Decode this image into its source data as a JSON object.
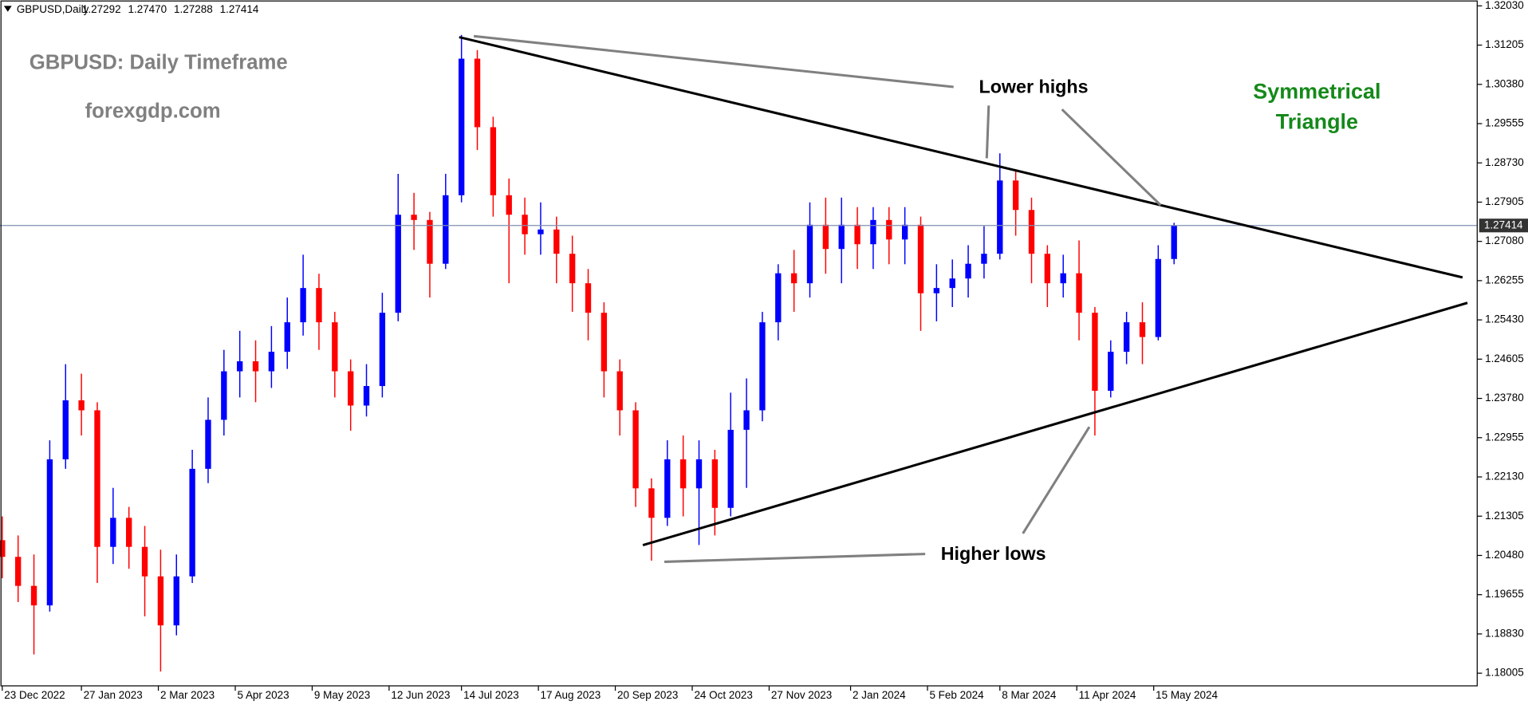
{
  "chart_data": {
    "type": "candlestick",
    "symbol_header": "GBPUSD,Daily",
    "ohlc_header": [
      "1.27292",
      "1.27470",
      "1.27288",
      "1.27414"
    ],
    "annotations": {
      "title": "GBPUSD: Daily Timeframe",
      "source": "forexgdp.com",
      "upper_note": "Lower highs",
      "lower_note": "Higher lows",
      "pattern": [
        "Symmetrical",
        "Triangle"
      ]
    },
    "up_color": "#0000ff",
    "down_color": "#ff0000",
    "current_price": {
      "value": 1.27414,
      "label": "1.27414"
    },
    "xlim": [
      "2022-12-22",
      "2024-10-05"
    ],
    "xticks": [
      {
        "value": "2022-12-23",
        "label": "23 Dec 2022"
      },
      {
        "value": "2023-01-27",
        "label": "27 Jan 2023"
      },
      {
        "value": "2023-03-02",
        "label": "2 Mar 2023"
      },
      {
        "value": "2023-04-05",
        "label": "5 Apr 2023"
      },
      {
        "value": "2023-05-09",
        "label": "9 May 2023"
      },
      {
        "value": "2023-06-12",
        "label": "12 Jun 2023"
      },
      {
        "value": "2023-07-14",
        "label": "14 Jul 2023"
      },
      {
        "value": "2023-08-17",
        "label": "17 Aug 2023"
      },
      {
        "value": "2023-09-20",
        "label": "20 Sep 2023"
      },
      {
        "value": "2023-10-24",
        "label": "24 Oct 2023"
      },
      {
        "value": "2023-11-27",
        "label": "27 Nov 2023"
      },
      {
        "value": "2024-01-02",
        "label": "2 Jan 2024"
      },
      {
        "value": "2024-02-05",
        "label": "5 Feb 2024"
      },
      {
        "value": "2024-03-08",
        "label": "8 Mar 2024"
      },
      {
        "value": "2024-04-11",
        "label": "11 Apr 2024"
      },
      {
        "value": "2024-05-15",
        "label": "15 May 2024"
      }
    ],
    "ylim": [
      1.17739,
      1.32153
    ],
    "yticks": [
      {
        "value": 1.3203,
        "label": "1.32030"
      },
      {
        "value": 1.31205,
        "label": "1.31205"
      },
      {
        "value": 1.3038,
        "label": "1.30380"
      },
      {
        "value": 1.29555,
        "label": "1.29555"
      },
      {
        "value": 1.2873,
        "label": "1.28730"
      },
      {
        "value": 1.27905,
        "label": "1.27905"
      },
      {
        "value": 1.2708,
        "label": "1.27080"
      },
      {
        "value": 1.26255,
        "label": "1.26255"
      },
      {
        "value": 1.2543,
        "label": "1.25430"
      },
      {
        "value": 1.24605,
        "label": "1.24605"
      },
      {
        "value": 1.2378,
        "label": "1.23780"
      },
      {
        "value": 1.22955,
        "label": "1.22955"
      },
      {
        "value": 1.2213,
        "label": "1.22130"
      },
      {
        "value": 1.21305,
        "label": "1.21305"
      },
      {
        "value": 1.2048,
        "label": "1.20480"
      },
      {
        "value": 1.19655,
        "label": "1.19655"
      },
      {
        "value": 1.1883,
        "label": "1.18830"
      },
      {
        "value": 1.18005,
        "label": "1.18005"
      }
    ],
    "x": [
      "2022-12-23",
      "2022-12-30",
      "2023-01-06",
      "2023-01-13",
      "2023-01-20",
      "2023-01-27",
      "2023-02-03",
      "2023-02-10",
      "2023-02-17",
      "2023-02-24",
      "2023-03-03",
      "2023-03-10",
      "2023-03-17",
      "2023-03-24",
      "2023-03-31",
      "2023-04-07",
      "2023-04-14",
      "2023-04-21",
      "2023-04-28",
      "2023-05-05",
      "2023-05-12",
      "2023-05-19",
      "2023-05-26",
      "2023-06-02",
      "2023-06-09",
      "2023-06-16",
      "2023-06-23",
      "2023-06-30",
      "2023-07-07",
      "2023-07-14",
      "2023-07-21",
      "2023-07-28",
      "2023-08-04",
      "2023-08-11",
      "2023-08-18",
      "2023-08-25",
      "2023-09-01",
      "2023-09-08",
      "2023-09-15",
      "2023-09-22",
      "2023-09-29",
      "2023-10-06",
      "2023-10-13",
      "2023-10-20",
      "2023-10-27",
      "2023-11-03",
      "2023-11-10",
      "2023-11-17",
      "2023-11-24",
      "2023-12-01",
      "2023-12-08",
      "2023-12-15",
      "2023-12-22",
      "2023-12-29",
      "2024-01-05",
      "2024-01-12",
      "2024-01-19",
      "2024-01-26",
      "2024-02-02",
      "2024-02-09",
      "2024-02-16",
      "2024-02-23",
      "2024-03-01",
      "2024-03-08",
      "2024-03-15",
      "2024-03-22",
      "2024-03-29",
      "2024-04-05",
      "2024-04-12",
      "2024-04-19",
      "2024-04-26",
      "2024-05-03",
      "2024-05-10",
      "2024-05-17",
      "2024-05-24"
    ],
    "open": [
      1.208,
      1.2045,
      1.1984,
      1.1943,
      1.225,
      1.2374,
      1.2353,
      1.2066,
      1.2127,
      1.2066,
      1.2004,
      1.1901,
      1.2004,
      1.223,
      1.2333,
      1.2435,
      1.2456,
      1.2435,
      1.2476,
      1.2538,
      1.261,
      1.2538,
      1.2435,
      1.2363,
      1.2404,
      1.2558,
      1.2764,
      1.2753,
      1.2661,
      1.2805,
      1.3092,
      1.2948,
      1.2805,
      1.2764,
      1.2723,
      1.2733,
      1.2682,
      1.262,
      1.2558,
      1.2435,
      1.2353,
      1.2189,
      1.2127,
      1.225,
      1.2189,
      1.225,
      1.2148,
      1.2312,
      1.2353,
      1.2538,
      1.2641,
      1.262,
      1.2743,
      1.2692,
      1.2743,
      1.2702,
      1.2753,
      1.2712,
      1.2743,
      1.2599,
      1.261,
      1.263,
      1.2661,
      1.2682,
      1.2836,
      1.2774,
      1.2682,
      1.262,
      1.2641,
      1.2558,
      1.2394,
      1.2476,
      1.2538,
      1.2507,
      1.2671
    ],
    "high": [
      1.213,
      1.209,
      1.205,
      1.229,
      1.245,
      1.243,
      1.237,
      1.219,
      1.215,
      1.211,
      1.206,
      1.205,
      1.227,
      1.238,
      1.248,
      1.252,
      1.25,
      1.253,
      1.259,
      1.268,
      1.264,
      1.256,
      1.246,
      1.245,
      1.26,
      1.285,
      1.281,
      1.277,
      1.285,
      1.3142,
      1.311,
      1.297,
      1.284,
      1.28,
      1.279,
      1.276,
      1.272,
      1.265,
      1.258,
      1.246,
      1.237,
      1.221,
      1.229,
      1.23,
      1.229,
      1.227,
      1.239,
      1.242,
      1.256,
      1.266,
      1.269,
      1.279,
      1.28,
      1.28,
      1.278,
      1.278,
      1.278,
      1.278,
      1.276,
      1.266,
      1.267,
      1.27,
      1.274,
      1.2893,
      1.286,
      1.28,
      1.27,
      1.268,
      1.271,
      1.257,
      1.25,
      1.256,
      1.258,
      1.27,
      1.2747
    ],
    "low": [
      1.2,
      1.195,
      1.184,
      1.193,
      1.223,
      1.23,
      1.199,
      1.203,
      1.202,
      1.192,
      1.1804,
      1.188,
      1.199,
      1.22,
      1.23,
      1.238,
      1.237,
      1.24,
      1.244,
      1.251,
      1.248,
      1.238,
      1.231,
      1.234,
      1.238,
      1.254,
      1.269,
      1.259,
      1.265,
      1.279,
      1.29,
      1.276,
      1.262,
      1.268,
      1.268,
      1.262,
      1.256,
      1.25,
      1.238,
      1.23,
      1.215,
      1.2037,
      1.211,
      1.213,
      1.207,
      1.209,
      1.213,
      1.219,
      1.233,
      1.25,
      1.256,
      1.259,
      1.264,
      1.262,
      1.265,
      1.265,
      1.266,
      1.266,
      1.252,
      1.254,
      1.257,
      1.259,
      1.263,
      1.267,
      1.272,
      1.262,
      1.257,
      1.259,
      1.25,
      1.23,
      1.238,
      1.245,
      1.245,
      1.25,
      1.266
    ],
    "close": [
      1.2045,
      1.1984,
      1.1943,
      1.225,
      1.2374,
      1.2353,
      1.2066,
      1.2127,
      1.2066,
      1.2004,
      1.1901,
      1.2004,
      1.223,
      1.2333,
      1.2435,
      1.2456,
      1.2435,
      1.2476,
      1.2538,
      1.261,
      1.2538,
      1.2435,
      1.2363,
      1.2404,
      1.2558,
      1.2764,
      1.2753,
      1.2661,
      1.2805,
      1.3092,
      1.2948,
      1.2805,
      1.2764,
      1.2723,
      1.2733,
      1.2682,
      1.262,
      1.2558,
      1.2435,
      1.2353,
      1.2189,
      1.2127,
      1.225,
      1.2189,
      1.225,
      1.2148,
      1.2312,
      1.2353,
      1.2538,
      1.2641,
      1.262,
      1.2743,
      1.2692,
      1.2743,
      1.2702,
      1.2753,
      1.2712,
      1.2743,
      1.2599,
      1.261,
      1.263,
      1.2661,
      1.2682,
      1.2836,
      1.2774,
      1.2682,
      1.262,
      1.2641,
      1.2558,
      1.2394,
      1.2476,
      1.2538,
      1.2507,
      1.2671,
      1.27414
    ]
  }
}
